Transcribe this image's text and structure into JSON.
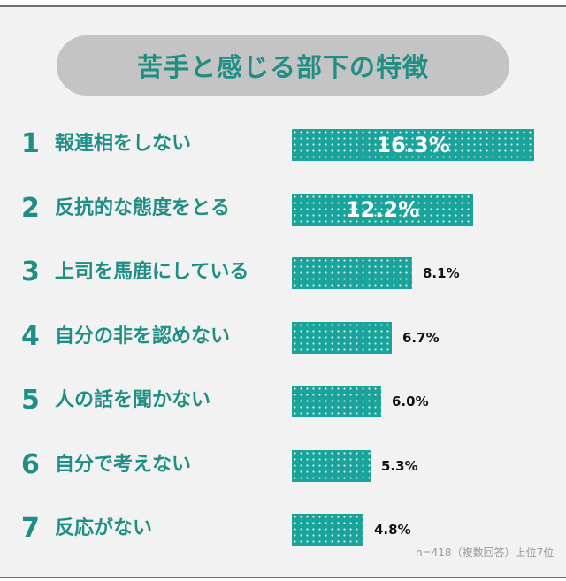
{
  "colors": {
    "accent": "#1f8f86",
    "bar": "#1aa39a",
    "pill": "#c4c4c4",
    "background": "#f2f2f2"
  },
  "chart_data": {
    "type": "bar",
    "orientation": "horizontal",
    "title": "苦手と感じる部下の特徴",
    "ranks": [
      "1",
      "2",
      "3",
      "4",
      "5",
      "6",
      "7"
    ],
    "categories": [
      "報連相をしない",
      "反抗的な態度をとる",
      "上司を馬鹿にしている",
      "自分の非を認めない",
      "人の話を聞かない",
      "自分で考えない",
      "反応がない"
    ],
    "values": [
      16.3,
      12.2,
      8.1,
      6.7,
      6.0,
      5.3,
      4.8
    ],
    "value_labels": [
      "16.3%",
      "12.2%",
      "8.1%",
      "6.7%",
      "6.0%",
      "5.3%",
      "4.8%"
    ],
    "xlim": [
      0,
      16.3
    ],
    "grid": false,
    "note": "n=418（複数回答）上位7位"
  }
}
